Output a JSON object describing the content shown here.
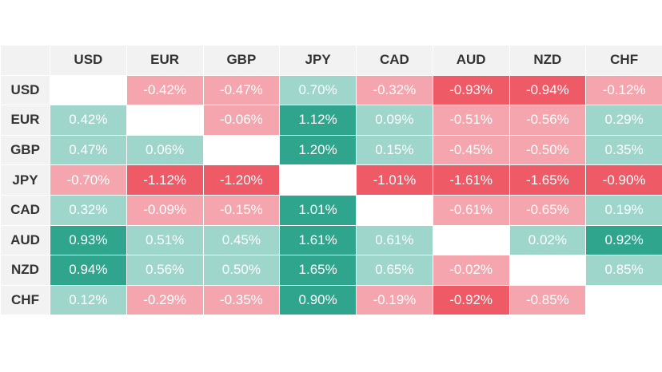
{
  "chart_data": {
    "type": "heatmap",
    "title": "",
    "columns": [
      "USD",
      "EUR",
      "GBP",
      "JPY",
      "CAD",
      "AUD",
      "NZD",
      "CHF"
    ],
    "rows": [
      "USD",
      "EUR",
      "GBP",
      "JPY",
      "CAD",
      "AUD",
      "NZD",
      "CHF"
    ],
    "values": [
      [
        null,
        -0.42,
        -0.47,
        0.7,
        -0.32,
        -0.93,
        -0.94,
        -0.12
      ],
      [
        0.42,
        null,
        -0.06,
        1.12,
        0.09,
        -0.51,
        -0.56,
        0.29
      ],
      [
        0.47,
        0.06,
        null,
        1.2,
        0.15,
        -0.45,
        -0.5,
        0.35
      ],
      [
        -0.7,
        -1.12,
        -1.2,
        null,
        -1.01,
        -1.61,
        -1.65,
        -0.9
      ],
      [
        0.32,
        -0.09,
        -0.15,
        1.01,
        null,
        -0.61,
        -0.65,
        0.19
      ],
      [
        0.93,
        0.51,
        0.45,
        1.61,
        0.61,
        null,
        0.02,
        0.92
      ],
      [
        0.94,
        0.56,
        0.5,
        1.65,
        0.65,
        -0.02,
        null,
        0.85
      ],
      [
        0.12,
        -0.29,
        -0.35,
        0.9,
        -0.19,
        -0.92,
        -0.85,
        null
      ]
    ],
    "labels": [
      [
        "",
        "-0.42%",
        "-0.47%",
        "0.70%",
        "-0.32%",
        "-0.93%",
        "-0.94%",
        "-0.12%"
      ],
      [
        "0.42%",
        "",
        "-0.06%",
        "1.12%",
        "0.09%",
        "-0.51%",
        "-0.56%",
        "0.29%"
      ],
      [
        "0.47%",
        "0.06%",
        "",
        "1.20%",
        "0.15%",
        "-0.45%",
        "-0.50%",
        "0.35%"
      ],
      [
        "-0.70%",
        "-1.12%",
        "-1.20%",
        "",
        "-1.01%",
        "-1.61%",
        "-1.65%",
        "-0.90%"
      ],
      [
        "0.32%",
        "-0.09%",
        "-0.15%",
        "1.01%",
        "",
        "-0.61%",
        "-0.65%",
        "0.19%"
      ],
      [
        "0.93%",
        "0.51%",
        "0.45%",
        "1.61%",
        "0.61%",
        "",
        "0.02%",
        "0.92%"
      ],
      [
        "0.94%",
        "0.56%",
        "0.50%",
        "1.65%",
        "0.65%",
        "-0.02%",
        "",
        "0.85%"
      ],
      [
        "0.12%",
        "-0.29%",
        "-0.35%",
        "0.90%",
        "-0.19%",
        "-0.92%",
        "-0.85%",
        ""
      ]
    ],
    "colors": {
      "positive_light": "#9ed6cc",
      "positive_strong": "#2fa58e",
      "negative_light": "#f4a5ad",
      "negative_strong": "#ee5a66"
    },
    "strong_threshold": 0.9
  }
}
